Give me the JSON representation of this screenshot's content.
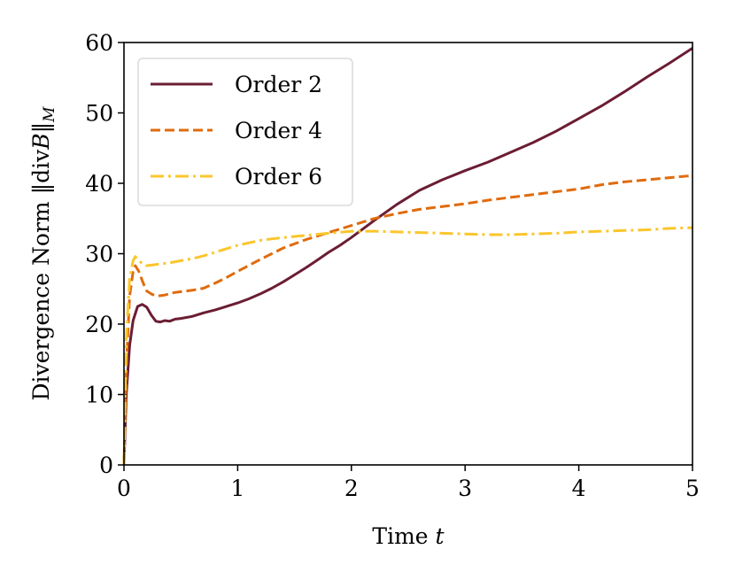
{
  "chart_data": {
    "type": "line",
    "xlabel": "Time ",
    "xlabel_var": "t",
    "ylabel": "Divergence Norm ‖div",
    "ylabel_var": "B",
    "ylabel_close": "‖",
    "ylabel_sub": "M",
    "xlim": [
      0,
      5
    ],
    "ylim": [
      0,
      60
    ],
    "xticks": [
      0,
      1,
      2,
      3,
      4,
      5
    ],
    "yticks": [
      0,
      10,
      20,
      30,
      40,
      50,
      60
    ],
    "grid": false,
    "legend": "top-left",
    "series": [
      {
        "name": "Order 2",
        "color": "#6b1d33",
        "dash": "solid",
        "x": [
          0,
          0.02,
          0.05,
          0.08,
          0.12,
          0.16,
          0.2,
          0.24,
          0.28,
          0.32,
          0.36,
          0.4,
          0.45,
          0.5,
          0.6,
          0.7,
          0.8,
          0.9,
          1.0,
          1.1,
          1.2,
          1.3,
          1.4,
          1.5,
          1.6,
          1.7,
          1.8,
          1.9,
          2.0,
          2.2,
          2.4,
          2.6,
          2.8,
          3.0,
          3.2,
          3.4,
          3.6,
          3.8,
          4.0,
          4.2,
          4.4,
          4.6,
          4.8,
          5.0
        ],
        "y": [
          0,
          10,
          17,
          20.5,
          22.5,
          22.8,
          22.4,
          21.3,
          20.4,
          20.3,
          20.5,
          20.4,
          20.7,
          20.8,
          21.1,
          21.6,
          22.0,
          22.5,
          23.0,
          23.6,
          24.3,
          25.1,
          26.0,
          27.0,
          28.0,
          29.1,
          30.2,
          31.2,
          32.3,
          34.7,
          37.0,
          39.0,
          40.5,
          41.8,
          43.0,
          44.4,
          45.8,
          47.4,
          49.2,
          51.0,
          53.0,
          55.1,
          57.1,
          59.2
        ]
      },
      {
        "name": "Order 4",
        "color": "#e06b0d",
        "dash": "dashed",
        "x": [
          0,
          0.02,
          0.05,
          0.08,
          0.1,
          0.13,
          0.17,
          0.2,
          0.25,
          0.3,
          0.35,
          0.4,
          0.45,
          0.5,
          0.6,
          0.7,
          0.8,
          0.9,
          1.0,
          1.2,
          1.4,
          1.6,
          1.8,
          2.0,
          2.2,
          2.4,
          2.6,
          2.8,
          3.0,
          3.2,
          3.4,
          3.6,
          3.8,
          4.0,
          4.2,
          4.4,
          4.6,
          4.8,
          5.0
        ],
        "y": [
          0,
          14,
          24,
          27.5,
          28.3,
          27.5,
          25.8,
          24.7,
          24.2,
          24.0,
          24.1,
          24.3,
          24.5,
          24.6,
          24.8,
          25.1,
          25.8,
          26.6,
          27.5,
          29.2,
          30.8,
          32.0,
          33.0,
          34.0,
          35.0,
          35.7,
          36.3,
          36.7,
          37.1,
          37.6,
          38.0,
          38.4,
          38.8,
          39.2,
          39.8,
          40.2,
          40.5,
          40.8,
          41.1
        ]
      },
      {
        "name": "Order 6",
        "color": "#fbc62c",
        "dash": "dashdot",
        "x": [
          0,
          0.02,
          0.05,
          0.08,
          0.1,
          0.13,
          0.17,
          0.2,
          0.25,
          0.3,
          0.35,
          0.4,
          0.5,
          0.6,
          0.7,
          0.8,
          1.0,
          1.2,
          1.4,
          1.6,
          1.8,
          2.0,
          2.2,
          2.4,
          2.6,
          2.8,
          3.0,
          3.2,
          3.4,
          3.6,
          3.8,
          4.0,
          4.2,
          4.4,
          4.6,
          4.8,
          5.0
        ],
        "y": [
          0,
          18,
          26.5,
          29.0,
          29.6,
          29.0,
          28.5,
          28.3,
          28.4,
          28.5,
          28.6,
          28.7,
          29.0,
          29.3,
          29.7,
          30.2,
          31.2,
          31.9,
          32.3,
          32.6,
          32.9,
          33.2,
          33.2,
          33.1,
          33.0,
          32.9,
          32.8,
          32.7,
          32.7,
          32.8,
          32.9,
          33.1,
          33.2,
          33.3,
          33.4,
          33.6,
          33.7
        ]
      }
    ]
  }
}
